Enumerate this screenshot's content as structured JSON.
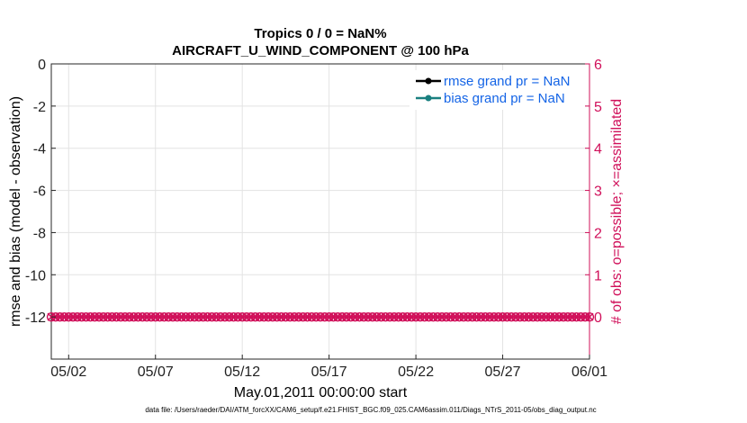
{
  "chart_data": {
    "type": "line",
    "title": "Tropics 0 / 0 = NaN%",
    "subtitle": "AIRCRAFT_U_WIND_COMPONENT @ 100 hPa",
    "xlabel": "May.01,2011 00:00:00 start",
    "ylabel": "rmse and bias (model - observation)",
    "ylabel_right": "# of obs: o=possible; ×=assimilated",
    "x_tick_labels": [
      "05/02",
      "05/07",
      "05/12",
      "05/17",
      "05/22",
      "05/27",
      "06/01"
    ],
    "x_ticks": [
      2,
      7,
      12,
      17,
      22,
      27,
      32
    ],
    "xlim": [
      1,
      32
    ],
    "y_tick_labels": [
      "0",
      "-2",
      "-4",
      "-6",
      "-8",
      "-10",
      "-12"
    ],
    "y_ticks": [
      0,
      -2,
      -4,
      -6,
      -8,
      -10,
      -12
    ],
    "ylim": [
      -14,
      0
    ],
    "y2_tick_labels": [
      "6",
      "5",
      "4",
      "3",
      "2",
      "1",
      "0"
    ],
    "y2_ticks": [
      6,
      5,
      4,
      3,
      2,
      1,
      0
    ],
    "y2lim": [
      -1,
      6
    ],
    "grid": true,
    "legend_position": "top-right",
    "series": [
      {
        "name": "rmse grand pr = NaN",
        "color": "#000000",
        "values": []
      },
      {
        "name": "bias grand pr = NaN",
        "color": "#1a8080",
        "values": []
      },
      {
        "name": "",
        "axis": "right",
        "color": "#d0105a",
        "marker": "o",
        "x_start": 1,
        "x_step": 0.25,
        "count": 125,
        "y_value": 0
      },
      {
        "name": "",
        "axis": "right",
        "color": "#d0105a",
        "marker": "x",
        "x_start": 1,
        "x_step": 0.25,
        "count": 125,
        "y_value": 0
      }
    ],
    "footnote": "data file: /Users/raeder/DAI/ATM_forcXX/CAM6_setup/f.e21.FHIST_BGC.f09_025.CAM6assim.011/Diags_NTrS_2011-05/obs_diag_output.nc",
    "colors": {
      "right_axis": "#d0105a",
      "legend_text": "#1464e6"
    }
  }
}
